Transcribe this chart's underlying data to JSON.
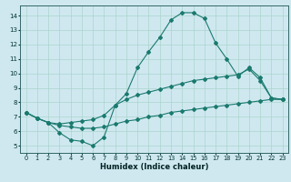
{
  "xlabel": "Humidex (Indice chaleur)",
  "ylabel": "",
  "background_color": "#cfe8f0",
  "grid_color": "#aad4cc",
  "line_color": "#1a7a6e",
  "xlim": [
    -0.5,
    23.5
  ],
  "ylim": [
    4.5,
    14.7
  ],
  "xticks": [
    0,
    1,
    2,
    3,
    4,
    5,
    6,
    7,
    8,
    9,
    10,
    11,
    12,
    13,
    14,
    15,
    16,
    17,
    18,
    19,
    20,
    21,
    22,
    23
  ],
  "yticks": [
    5,
    6,
    7,
    8,
    9,
    10,
    11,
    12,
    13,
    14
  ],
  "line1_x": [
    0,
    1,
    2,
    3,
    4,
    5,
    6,
    7,
    8,
    9,
    10,
    11,
    12,
    13,
    14,
    15,
    16,
    17,
    18,
    19,
    20,
    21,
    22,
    23
  ],
  "line1_y": [
    7.3,
    6.9,
    6.6,
    5.9,
    5.4,
    5.3,
    5.0,
    5.6,
    7.8,
    8.6,
    10.4,
    11.5,
    12.5,
    13.7,
    14.2,
    14.2,
    13.8,
    12.1,
    11.0,
    9.8,
    10.4,
    9.7,
    8.3,
    8.2
  ],
  "line2_x": [
    0,
    1,
    2,
    3,
    4,
    5,
    6,
    7,
    8,
    9,
    10,
    11,
    12,
    13,
    14,
    15,
    16,
    17,
    18,
    19,
    20,
    21,
    22,
    23
  ],
  "line2_y": [
    7.3,
    6.9,
    6.6,
    6.5,
    6.6,
    6.7,
    6.8,
    7.1,
    7.8,
    8.2,
    8.5,
    8.7,
    8.9,
    9.1,
    9.3,
    9.5,
    9.6,
    9.7,
    9.8,
    9.9,
    10.3,
    9.5,
    8.3,
    8.2
  ],
  "line3_x": [
    0,
    1,
    2,
    3,
    4,
    5,
    6,
    7,
    8,
    9,
    10,
    11,
    12,
    13,
    14,
    15,
    16,
    17,
    18,
    19,
    20,
    21,
    22,
    23
  ],
  "line3_y": [
    7.3,
    6.9,
    6.6,
    6.4,
    6.3,
    6.2,
    6.2,
    6.3,
    6.5,
    6.7,
    6.8,
    7.0,
    7.1,
    7.3,
    7.4,
    7.5,
    7.6,
    7.7,
    7.8,
    7.9,
    8.0,
    8.1,
    8.2,
    8.2
  ],
  "xlabel_fontsize": 6.0,
  "tick_fontsize": 4.8,
  "marker_size": 2.0,
  "line_width": 0.8
}
